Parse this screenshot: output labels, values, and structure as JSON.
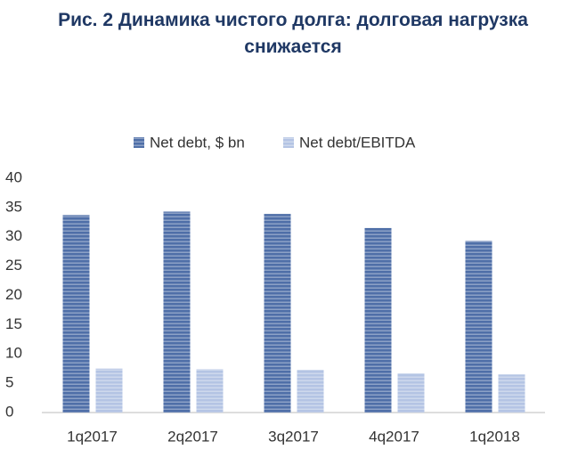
{
  "chart_data": {
    "type": "bar",
    "title": "Рис. 2 Динамика чистого долга: долговая нагрузка снижается",
    "categories": [
      "1q2017",
      "2q2017",
      "3q2017",
      "4q2017",
      "1q2018"
    ],
    "series": [
      {
        "name": "Net debt, $ bn",
        "color": "#4f6fa8",
        "values": [
          33.7,
          34.3,
          33.9,
          31.5,
          29.3
        ]
      },
      {
        "name": "Net debt/EBITDA",
        "color": "#b4c4e4",
        "values": [
          7.5,
          7.4,
          7.3,
          6.7,
          6.5
        ]
      }
    ],
    "ylim": [
      0,
      40
    ],
    "yticks": [
      0,
      5,
      10,
      15,
      20,
      25,
      30,
      35,
      40
    ],
    "grid": false
  }
}
